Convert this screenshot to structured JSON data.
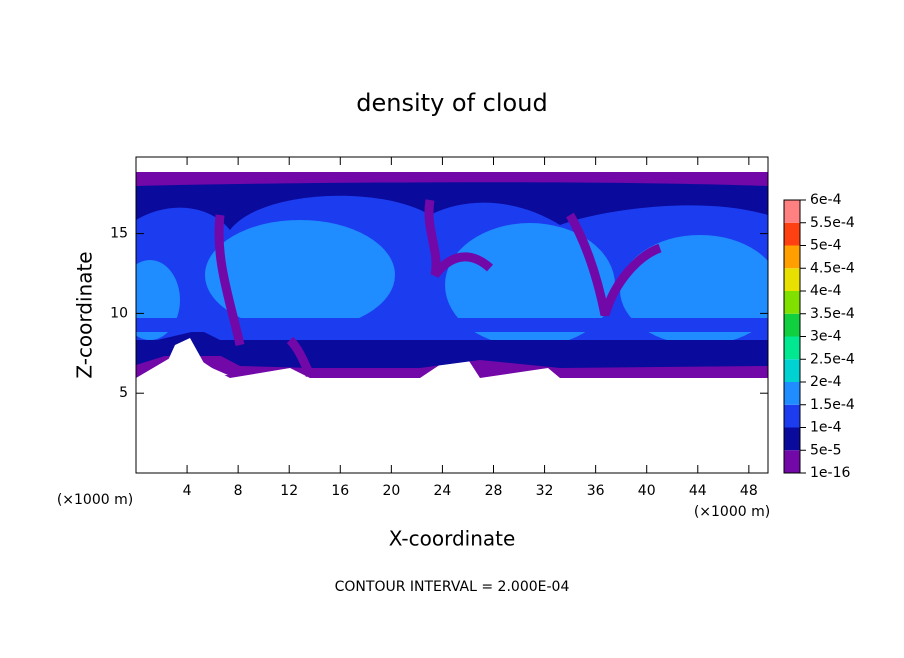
{
  "chart_data": {
    "type": "contour",
    "title": "density of cloud",
    "x_label": "X-coordinate",
    "y_label": "Z-coordinate",
    "x_unit_label": "(×1000 m)",
    "footer": "CONTOUR INTERVAL = 2.000E-04",
    "xlim": [
      0,
      49.5
    ],
    "ylim": [
      0,
      19.8
    ],
    "xticks": [
      4,
      8,
      12,
      16,
      20,
      24,
      28,
      32,
      36,
      40,
      44,
      48
    ],
    "yticks": [
      5,
      10,
      15
    ],
    "colorbar": {
      "ticks": [
        {
          "value": 1e-16,
          "label": "1e-16"
        },
        {
          "value": 5e-05,
          "label": "5e-5"
        },
        {
          "value": 0.0001,
          "label": "1e-4"
        },
        {
          "value": 0.00015,
          "label": "1.5e-4"
        },
        {
          "value": 0.0002,
          "label": "2e-4"
        },
        {
          "value": 0.00025,
          "label": "2.5e-4"
        },
        {
          "value": 0.0003,
          "label": "3e-4"
        },
        {
          "value": 0.00035,
          "label": "3.5e-4"
        },
        {
          "value": 0.0004,
          "label": "4e-4"
        },
        {
          "value": 0.00045,
          "label": "4.5e-4"
        },
        {
          "value": 0.0005,
          "label": "5e-4"
        },
        {
          "value": 0.00055,
          "label": "5.5e-4"
        },
        {
          "value": 0.0006,
          "label": "6e-4"
        }
      ],
      "colors": [
        "#7308a8",
        "#0a0a9c",
        "#1c3cf0",
        "#1f8cff",
        "#00d2d2",
        "#00e890",
        "#10d040",
        "#80e000",
        "#e8e000",
        "#ffa000",
        "#ff4010",
        "#ff8080"
      ]
    }
  }
}
